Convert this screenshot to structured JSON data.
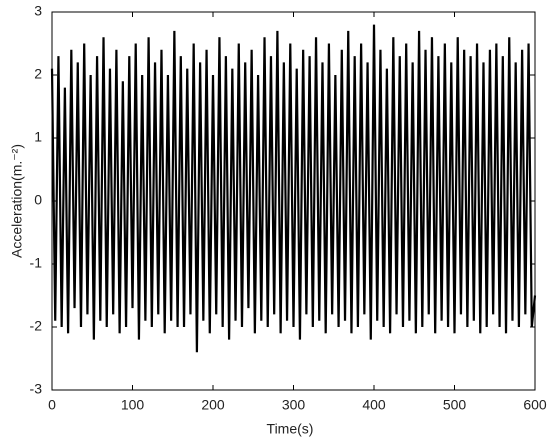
{
  "chart_data": {
    "type": "line",
    "x_label": "Time(s)",
    "y_label": "Acceleration(m.⁻²)",
    "x": [
      0,
      4,
      8,
      12,
      16,
      20,
      24,
      28,
      32,
      36,
      40,
      44,
      48,
      52,
      56,
      60,
      64,
      68,
      72,
      76,
      80,
      84,
      88,
      92,
      96,
      100,
      104,
      108,
      112,
      116,
      120,
      124,
      128,
      132,
      136,
      140,
      144,
      148,
      152,
      156,
      160,
      164,
      168,
      172,
      176,
      180,
      184,
      188,
      192,
      196,
      200,
      204,
      208,
      212,
      216,
      220,
      224,
      228,
      232,
      236,
      240,
      244,
      248,
      252,
      256,
      260,
      264,
      268,
      272,
      276,
      280,
      284,
      288,
      292,
      296,
      300,
      304,
      308,
      312,
      316,
      320,
      324,
      328,
      332,
      336,
      340,
      344,
      348,
      352,
      356,
      360,
      364,
      368,
      372,
      376,
      380,
      384,
      388,
      392,
      396,
      400,
      404,
      408,
      412,
      416,
      420,
      424,
      428,
      432,
      436,
      440,
      444,
      448,
      452,
      456,
      460,
      464,
      468,
      472,
      476,
      480,
      484,
      488,
      492,
      496,
      500,
      504,
      508,
      512,
      516,
      520,
      524,
      528,
      532,
      536,
      540,
      544,
      548,
      552,
      556,
      560,
      564,
      568,
      572,
      576,
      580,
      584,
      588,
      592,
      596,
      600
    ],
    "values": [
      2.1,
      -1.9,
      2.3,
      -2.0,
      1.8,
      -2.1,
      2.4,
      -1.7,
      2.2,
      -2.0,
      2.5,
      -1.8,
      2.0,
      -2.2,
      2.3,
      -1.9,
      2.6,
      -2.0,
      2.1,
      -1.8,
      2.4,
      -2.1,
      1.9,
      -2.0,
      2.3,
      -1.7,
      2.5,
      -2.2,
      2.0,
      -1.9,
      2.6,
      -2.0,
      2.2,
      -1.8,
      2.4,
      -2.1,
      2.0,
      -1.9,
      2.7,
      -2.0,
      2.3,
      -2.0,
      2.1,
      -1.8,
      2.5,
      -2.4,
      2.2,
      -1.9,
      2.4,
      -2.1,
      2.0,
      -1.8,
      2.6,
      -2.0,
      2.3,
      -2.2,
      2.1,
      -1.9,
      2.5,
      -2.0,
      2.2,
      -1.7,
      2.4,
      -2.1,
      2.0,
      -1.9,
      2.6,
      -2.0,
      2.3,
      -1.8,
      2.7,
      -2.1,
      2.2,
      -1.9,
      2.5,
      -2.0,
      2.1,
      -2.2,
      2.4,
      -1.8,
      2.3,
      -2.0,
      2.6,
      -1.9,
      2.2,
      -2.1,
      2.5,
      -1.8,
      2.0,
      -2.0,
      2.4,
      -1.9,
      2.7,
      -2.1,
      2.3,
      -2.0,
      2.5,
      -1.8,
      2.2,
      -2.2,
      2.8,
      -1.9,
      2.4,
      -2.0,
      2.1,
      -2.1,
      2.6,
      -1.8,
      2.3,
      -2.0,
      2.5,
      -1.9,
      2.2,
      -2.1,
      2.7,
      -2.0,
      2.4,
      -1.8,
      2.6,
      -2.1,
      2.3,
      -1.9,
      2.5,
      -2.0,
      2.2,
      -2.1,
      2.6,
      -1.8,
      2.4,
      -2.0,
      2.3,
      -1.9,
      2.5,
      -2.1,
      2.2,
      -2.0,
      2.4,
      -1.8,
      2.5,
      -2.0,
      2.3,
      -2.1,
      2.6,
      -1.9,
      2.2,
      -2.0,
      2.4,
      -1.8,
      2.5,
      -2.0,
      -1.5
    ],
    "color": "#000000",
    "xlim": [
      0,
      600
    ],
    "xticks": [
      0,
      100,
      200,
      300,
      400,
      500,
      600
    ],
    "ylim": [
      -3,
      3
    ],
    "yticks": [
      -3,
      -2,
      -1,
      0,
      1,
      2,
      3
    ]
  }
}
